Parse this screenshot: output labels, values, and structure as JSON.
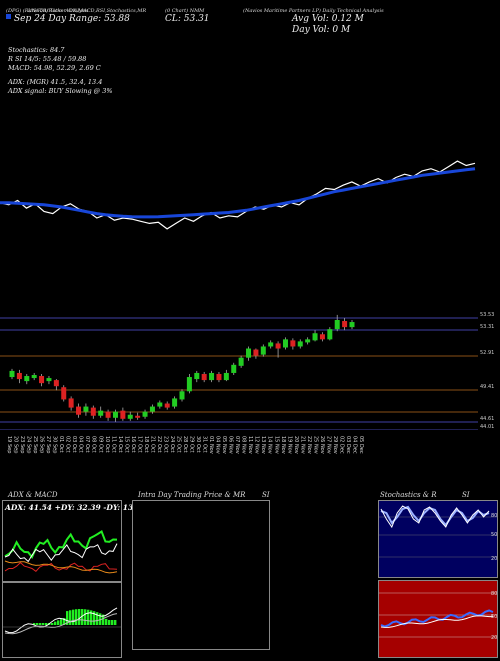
{
  "colors": {
    "background": "#000000",
    "ma_line": "#1846d8",
    "price_line": "#ffffff",
    "candle_up": "#22cc22",
    "candle_down": "#dd2222",
    "level_line": "#b86a1e",
    "green": "#22ee22",
    "orange": "#e88a1a",
    "navy": "#000060",
    "red_panel": "#a50000"
  },
  "header": {
    "ticker_label": "(DPG) (Ratio 50) Ticker Analysis",
    "indicators_label": "I/N/R/A/Ratio: ADX,MACD,RSI,Stochastics,MR",
    "chart_label": "(0 Chart) NMM",
    "company": "(Navios Maritime Partners LP) Daily Technical Analysis",
    "date_range": "Sep 24 Day Range: 53.88",
    "close_label": "CL: 53.31",
    "avg_vol": "Avg Vol: 0.12 M",
    "day_vol": "Day Vol: 0 M"
  },
  "info": {
    "stoch": "Stochastics: 84.7",
    "rsi": "R       SI 14/5: 55.48 / 59.88",
    "macd": "MACD: 54.98, 52.29, 2.69 C",
    "adx": "ADX:                      (MGR) 41.5, 32.4, 13.4",
    "adx_signal": "ADX  signal:                          BUY Slowing @ 3%"
  },
  "price_levels": [
    "53.53",
    "53.31",
    "52.91",
    "49.41",
    "44.61",
    "44.01"
  ],
  "dates": [
    "19 Sep",
    "20 Sep",
    "23 Sep",
    "24 Sep",
    "25 Sep",
    "26 Sep",
    "27 Sep",
    "30 Sep",
    "01 Oct",
    "02 Oct",
    "03 Oct",
    "04 Oct",
    "07 Oct",
    "08 Oct",
    "09 Oct",
    "10 Oct",
    "11 Oct",
    "14 Oct",
    "15 Oct",
    "16 Oct",
    "17 Oct",
    "18 Oct",
    "21 Oct",
    "22 Oct",
    "23 Oct",
    "24 Oct",
    "25 Oct",
    "28 Oct",
    "29 Oct",
    "30 Oct",
    "31 Oct",
    "01 Nov",
    "04 Nov",
    "05 Nov",
    "06 Nov",
    "07 Nov",
    "08 Nov",
    "11 Nov",
    "12 Nov",
    "13 Nov",
    "14 Nov",
    "15 Nov",
    "18 Nov",
    "19 Nov",
    "20 Nov",
    "21 Nov",
    "22 Nov",
    "25 Nov",
    "26 Nov",
    "27 Nov",
    "29 Nov",
    "02 Dec",
    "03 Dec",
    "04 Dec",
    "05 Dec"
  ],
  "panels": {
    "adx_macd_title": "ADX  & MACD",
    "adx_values": "ADX: 41.54  +DY: 32.39  -DY: 13.38",
    "mr_title": "Intra  Day Trading Price  & MR",
    "mr_si": "SI",
    "stoch_title": "Stochastics & R",
    "stoch_si": "SI",
    "stoch_ticks": [
      "80",
      "50",
      "20"
    ],
    "rsi_ticks": [
      "80",
      "50",
      "20"
    ]
  },
  "chart_data": {
    "type": "line",
    "series": [
      {
        "values": [
          52.0,
          51.8,
          52.2,
          51.5,
          51.9,
          51.2,
          51.0,
          51.6,
          51.9,
          51.4,
          51.2,
          50.6,
          50.9,
          50.4,
          50.6,
          50.5,
          50.3,
          50.1,
          50.2,
          49.6,
          50.1,
          50.6,
          50.3,
          50.8,
          51.1,
          50.6,
          50.8,
          50.7,
          51.2,
          51.6,
          51.4,
          51.8,
          51.6,
          52.0,
          51.8,
          52.4,
          52.8,
          53.3,
          53.2,
          53.6,
          53.9,
          53.5,
          53.9,
          54.2,
          53.8,
          54.3,
          54.6,
          54.4,
          54.9,
          55.1,
          54.8,
          55.3,
          55.8,
          55.4,
          55.6
        ]
      },
      {
        "values": [
          52.0,
          52.0,
          51.95,
          51.9,
          51.85,
          51.8,
          51.7,
          51.6,
          51.45,
          51.3,
          51.15,
          51.0,
          50.9,
          50.82,
          50.75,
          50.72,
          50.7,
          50.7,
          50.72,
          50.75,
          50.8,
          50.85,
          50.9,
          50.95,
          51.0,
          51.05,
          51.1,
          51.2,
          51.3,
          51.45,
          51.6,
          51.75,
          51.9,
          52.05,
          52.2,
          52.4,
          52.6,
          52.8,
          53.0,
          53.15,
          53.3,
          53.45,
          53.6,
          53.75,
          53.9,
          54.05,
          54.2,
          54.35,
          54.5,
          54.6,
          54.7,
          54.8,
          54.9,
          55.0,
          55.1
        ]
      }
    ],
    "candles": [
      {
        "o": 49.2,
        "c": 49.8,
        "h": 50.0,
        "l": 49.0,
        "up": true
      },
      {
        "o": 49.6,
        "c": 49.0,
        "h": 49.9,
        "l": 48.6,
        "up": false
      },
      {
        "o": 48.8,
        "c": 49.3,
        "h": 49.5,
        "l": 48.5,
        "up": true
      },
      {
        "o": 49.1,
        "c": 49.4,
        "h": 49.6,
        "l": 48.9,
        "up": true
      },
      {
        "o": 49.3,
        "c": 48.6,
        "h": 49.5,
        "l": 48.3,
        "up": false
      },
      {
        "o": 48.8,
        "c": 49.1,
        "h": 49.3,
        "l": 48.5,
        "up": true
      },
      {
        "o": 48.9,
        "c": 48.3,
        "h": 49.0,
        "l": 47.9,
        "up": false
      },
      {
        "o": 48.2,
        "c": 47.0,
        "h": 48.4,
        "l": 46.8,
        "up": false
      },
      {
        "o": 47.1,
        "c": 46.2,
        "h": 47.3,
        "l": 45.9,
        "up": false
      },
      {
        "o": 46.3,
        "c": 45.5,
        "h": 46.6,
        "l": 45.2,
        "up": false
      },
      {
        "o": 45.8,
        "c": 46.3,
        "h": 46.6,
        "l": 45.4,
        "up": true
      },
      {
        "o": 46.2,
        "c": 45.4,
        "h": 46.4,
        "l": 45.1,
        "up": false
      },
      {
        "o": 45.4,
        "c": 45.9,
        "h": 46.3,
        "l": 45.2,
        "up": true
      },
      {
        "o": 45.8,
        "c": 45.2,
        "h": 46.0,
        "l": 44.9,
        "up": false
      },
      {
        "o": 45.2,
        "c": 45.8,
        "h": 46.0,
        "l": 44.8,
        "up": true
      },
      {
        "o": 45.9,
        "c": 45.1,
        "h": 46.2,
        "l": 44.9,
        "up": false
      },
      {
        "o": 45.1,
        "c": 45.5,
        "h": 45.8,
        "l": 44.9,
        "up": true
      },
      {
        "o": 45.4,
        "c": 45.2,
        "h": 45.7,
        "l": 45.0,
        "up": false
      },
      {
        "o": 45.3,
        "c": 45.8,
        "h": 46.0,
        "l": 45.1,
        "up": true
      },
      {
        "o": 45.8,
        "c": 46.3,
        "h": 46.5,
        "l": 45.6,
        "up": true
      },
      {
        "o": 46.3,
        "c": 46.7,
        "h": 46.9,
        "l": 46.1,
        "up": true
      },
      {
        "o": 46.6,
        "c": 46.2,
        "h": 46.8,
        "l": 46.0,
        "up": false
      },
      {
        "o": 46.3,
        "c": 47.1,
        "h": 47.3,
        "l": 46.1,
        "up": true
      },
      {
        "o": 47.0,
        "c": 47.8,
        "h": 48.0,
        "l": 46.8,
        "up": true
      },
      {
        "o": 47.8,
        "c": 49.2,
        "h": 49.5,
        "l": 47.6,
        "up": true
      },
      {
        "o": 49.0,
        "c": 49.6,
        "h": 49.8,
        "l": 48.7,
        "up": true
      },
      {
        "o": 49.5,
        "c": 48.9,
        "h": 49.7,
        "l": 48.7,
        "up": false
      },
      {
        "o": 48.9,
        "c": 49.6,
        "h": 49.8,
        "l": 48.7,
        "up": true
      },
      {
        "o": 49.5,
        "c": 48.9,
        "h": 49.7,
        "l": 48.7,
        "up": false
      },
      {
        "o": 48.9,
        "c": 49.6,
        "h": 49.9,
        "l": 48.8,
        "up": true
      },
      {
        "o": 49.6,
        "c": 50.4,
        "h": 50.6,
        "l": 49.4,
        "up": true
      },
      {
        "o": 50.3,
        "c": 51.1,
        "h": 51.3,
        "l": 50.1,
        "up": true
      },
      {
        "o": 51.1,
        "c": 52.0,
        "h": 52.2,
        "l": 50.8,
        "up": true
      },
      {
        "o": 51.9,
        "c": 51.3,
        "h": 52.0,
        "l": 51.0,
        "up": false
      },
      {
        "o": 51.4,
        "c": 52.2,
        "h": 52.4,
        "l": 51.2,
        "up": true
      },
      {
        "o": 52.2,
        "c": 52.6,
        "h": 52.8,
        "l": 52.0,
        "up": true
      },
      {
        "o": 52.5,
        "c": 52.0,
        "h": 52.7,
        "l": 51.1,
        "up": false
      },
      {
        "o": 52.1,
        "c": 52.9,
        "h": 53.1,
        "l": 51.9,
        "up": true
      },
      {
        "o": 52.8,
        "c": 52.2,
        "h": 53.0,
        "l": 51.9,
        "up": false
      },
      {
        "o": 52.2,
        "c": 52.7,
        "h": 52.9,
        "l": 52.0,
        "up": true
      },
      {
        "o": 52.6,
        "c": 52.9,
        "h": 53.1,
        "l": 52.4,
        "up": true
      },
      {
        "o": 52.8,
        "c": 53.5,
        "h": 53.8,
        "l": 52.7,
        "up": true
      },
      {
        "o": 53.4,
        "c": 52.9,
        "h": 53.6,
        "l": 52.7,
        "up": false
      },
      {
        "o": 52.9,
        "c": 53.9,
        "h": 54.1,
        "l": 52.8,
        "up": true
      },
      {
        "o": 53.9,
        "c": 54.8,
        "h": 55.3,
        "l": 53.7,
        "up": true
      },
      {
        "o": 54.7,
        "c": 54.1,
        "h": 55.0,
        "l": 53.8,
        "up": false
      },
      {
        "o": 54.1,
        "c": 54.6,
        "h": 54.8,
        "l": 53.9,
        "up": true
      }
    ]
  }
}
